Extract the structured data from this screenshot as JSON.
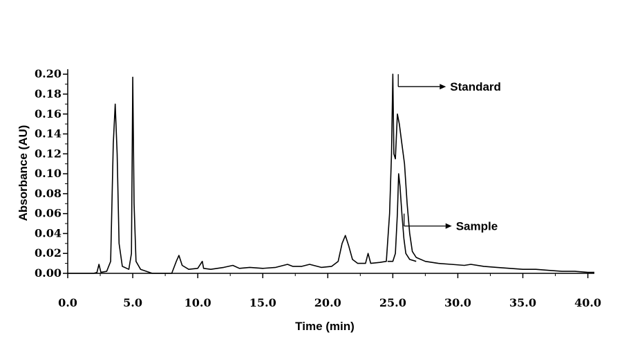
{
  "chart_data": {
    "type": "line",
    "xlabel": "Time (min)",
    "ylabel": "Absorbance (AU)",
    "xlim": [
      0,
      40.5
    ],
    "ylim": [
      0,
      0.205
    ],
    "x_ticks": [
      0,
      5,
      10,
      15,
      20,
      25,
      30,
      35,
      40
    ],
    "x_tick_labels": [
      "0.0",
      "5.0",
      "10.0",
      "15.0",
      "20.0",
      "25.0",
      "30.0",
      "35.0",
      "40.0"
    ],
    "y_ticks": [
      0,
      0.02,
      0.04,
      0.06,
      0.08,
      0.1,
      0.12,
      0.14,
      0.16,
      0.18,
      0.2
    ],
    "y_tick_labels": [
      "0.00",
      "0.02",
      "0.04",
      "0.06",
      "0.08",
      "0.10",
      "0.12",
      "0.14",
      "0.16",
      "0.18",
      "0.20"
    ],
    "line_color": "#000000",
    "grid": false,
    "series": [
      {
        "name": "Standard",
        "points": [
          [
            0,
            0.0
          ],
          [
            2.0,
            0.0
          ],
          [
            2.25,
            0.001
          ],
          [
            2.4,
            0.009
          ],
          [
            2.55,
            0.001
          ],
          [
            3.0,
            0.002
          ],
          [
            3.3,
            0.012
          ],
          [
            3.5,
            0.13
          ],
          [
            3.65,
            0.17
          ],
          [
            3.8,
            0.12
          ],
          [
            3.95,
            0.03
          ],
          [
            4.2,
            0.007
          ],
          [
            4.7,
            0.004
          ],
          [
            4.9,
            0.02
          ],
          [
            5.0,
            0.197
          ],
          [
            5.1,
            0.07
          ],
          [
            5.25,
            0.012
          ],
          [
            5.6,
            0.004
          ],
          [
            6.5,
            0.0
          ],
          [
            8.0,
            0.0
          ],
          [
            8.35,
            0.012
          ],
          [
            8.55,
            0.018
          ],
          [
            8.8,
            0.008
          ],
          [
            9.3,
            0.004
          ],
          [
            10.0,
            0.005
          ],
          [
            10.35,
            0.012
          ],
          [
            10.45,
            0.005
          ],
          [
            11.0,
            0.004
          ],
          [
            12.0,
            0.006
          ],
          [
            12.7,
            0.008
          ],
          [
            13.2,
            0.005
          ],
          [
            14.0,
            0.006
          ],
          [
            15.0,
            0.005
          ],
          [
            16.0,
            0.006
          ],
          [
            16.9,
            0.009
          ],
          [
            17.3,
            0.007
          ],
          [
            18.0,
            0.007
          ],
          [
            18.6,
            0.009
          ],
          [
            19.5,
            0.006
          ],
          [
            20.3,
            0.007
          ],
          [
            20.8,
            0.012
          ],
          [
            21.1,
            0.03
          ],
          [
            21.35,
            0.038
          ],
          [
            21.6,
            0.028
          ],
          [
            21.9,
            0.014
          ],
          [
            22.3,
            0.01
          ],
          [
            22.9,
            0.01
          ],
          [
            23.1,
            0.02
          ],
          [
            23.3,
            0.01
          ],
          [
            24.0,
            0.011
          ],
          [
            24.5,
            0.012
          ],
          [
            24.75,
            0.06
          ],
          [
            24.9,
            0.12
          ],
          [
            25.0,
            0.2
          ],
          [
            25.08,
            0.12
          ],
          [
            25.2,
            0.115
          ],
          [
            25.35,
            0.16
          ],
          [
            25.5,
            0.15
          ],
          [
            25.7,
            0.13
          ],
          [
            25.9,
            0.11
          ],
          [
            26.1,
            0.07
          ],
          [
            26.3,
            0.04
          ],
          [
            26.5,
            0.022
          ],
          [
            26.8,
            0.016
          ],
          [
            27.5,
            0.012
          ],
          [
            28.5,
            0.01
          ],
          [
            29.5,
            0.009
          ],
          [
            30.5,
            0.008
          ],
          [
            31.0,
            0.009
          ],
          [
            32.0,
            0.007
          ],
          [
            33.0,
            0.006
          ],
          [
            34.0,
            0.005
          ],
          [
            35.0,
            0.004
          ],
          [
            36.0,
            0.004
          ],
          [
            37.0,
            0.003
          ],
          [
            38.0,
            0.002
          ],
          [
            39.0,
            0.002
          ],
          [
            40.0,
            0.001
          ],
          [
            40.5,
            0.001
          ]
        ]
      },
      {
        "name": "Sample",
        "points": [
          [
            24.6,
            0.012
          ],
          [
            25.0,
            0.012
          ],
          [
            25.2,
            0.02
          ],
          [
            25.35,
            0.06
          ],
          [
            25.45,
            0.1
          ],
          [
            25.55,
            0.088
          ],
          [
            25.7,
            0.06
          ],
          [
            25.85,
            0.035
          ],
          [
            26.0,
            0.02
          ],
          [
            26.3,
            0.014
          ],
          [
            26.8,
            0.012
          ]
        ]
      }
    ],
    "annotations": [
      {
        "text": "Standard",
        "target": [
          25.1,
          0.2
        ]
      },
      {
        "text": "Sample",
        "target": [
          25.55,
          0.06
        ]
      }
    ]
  }
}
